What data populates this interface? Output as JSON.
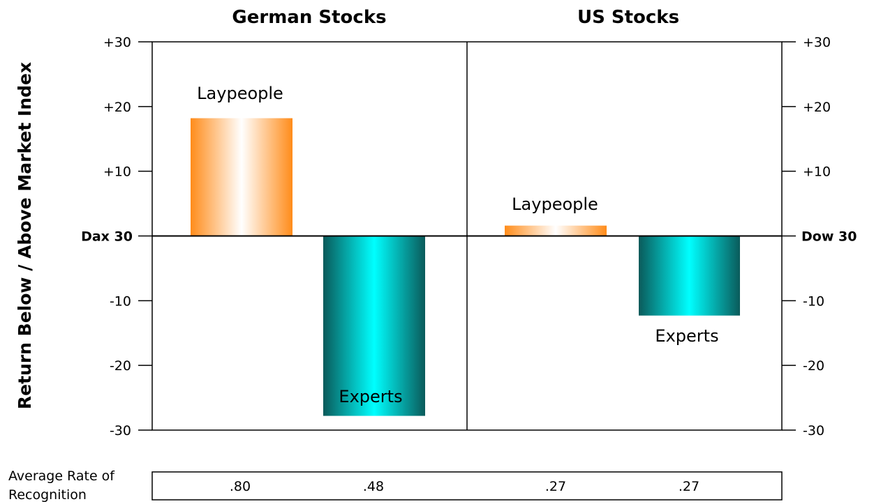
{
  "chart_data": {
    "type": "bar",
    "ylabel": "Return Below / Above Market Index",
    "ylim": [
      -30,
      30
    ],
    "yticks": [
      "-30",
      "-20",
      "-10",
      "Dax 30",
      "+10",
      "+20",
      "+30"
    ],
    "yticks_right": [
      "-30",
      "-20",
      "-10",
      "Dow 30",
      "+10",
      "+20",
      "+30"
    ],
    "panels": [
      {
        "title": "German Stocks",
        "baseline_label": "Dax 30",
        "categories": [
          "Laypeople",
          "Experts"
        ],
        "values": [
          18.2,
          -27.8
        ]
      },
      {
        "title": "US Stocks",
        "baseline_label": "Dow 30",
        "categories": [
          "Laypeople",
          "Experts"
        ],
        "values": [
          1.6,
          -12.3
        ]
      }
    ],
    "recognition": {
      "label_line1": "Average Rate of",
      "label_line2": "Recognition",
      "values": [
        ".80",
        ".48",
        ".27",
        ".27"
      ]
    },
    "colors": {
      "laypeople_edge": "#ff8c1a",
      "laypeople_mid": "#ffffff",
      "experts_edge": "#0a5a5a",
      "experts_mid": "#00ffff"
    }
  }
}
